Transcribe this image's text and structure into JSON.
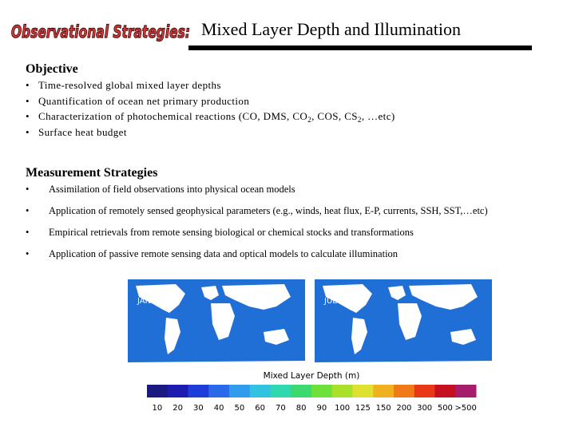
{
  "header": {
    "logo_text": "Observational Strategies:",
    "title": "Mixed Layer Depth and Illumination"
  },
  "objective": {
    "heading": "Objective",
    "bullet": "•",
    "items": [
      "Time-resolved global mixed layer depths",
      "Quantification of ocean net primary production",
      "Characterization of photochemical reactions (CO, DMS, CO2, COS, CS2, …etc)",
      "Surface heat budget"
    ]
  },
  "measurement": {
    "heading": "Measurement Strategies",
    "bullet": "•",
    "items": [
      "Assimilation of field observations into physical ocean models",
      "Application of remotely sensed geophysical parameters (e.g., winds, heat flux, E-P, currents, SSH, SST,…etc)",
      "Empirical retrievals from remote sensing biological or chemical stocks and transformations",
      "Application of passive remote sensing data and optical models to calculate illumination"
    ]
  },
  "figure": {
    "map_left_label": "JAN",
    "map_right_label": "JUL",
    "colorbar_title": "Mixed Layer Depth (m)",
    "colorbar_ticks": [
      "10",
      "20",
      "30",
      "40",
      "50",
      "60",
      "70",
      "80",
      "90",
      "100",
      "125",
      "150",
      "200",
      "300",
      "500",
      ">500"
    ],
    "colorbar_colors": [
      "#1a1a80",
      "#1c1cb0",
      "#1e3cd8",
      "#2a6ae8",
      "#2f9cec",
      "#33c2e0",
      "#30d8b0",
      "#3cd870",
      "#6ee03a",
      "#a8e02c",
      "#e0e030",
      "#f0b020",
      "#f07a18",
      "#e83818",
      "#c41020",
      "#a81c6c"
    ],
    "ocean_color": "#1f6fd6",
    "land_color": "#ffffff"
  }
}
